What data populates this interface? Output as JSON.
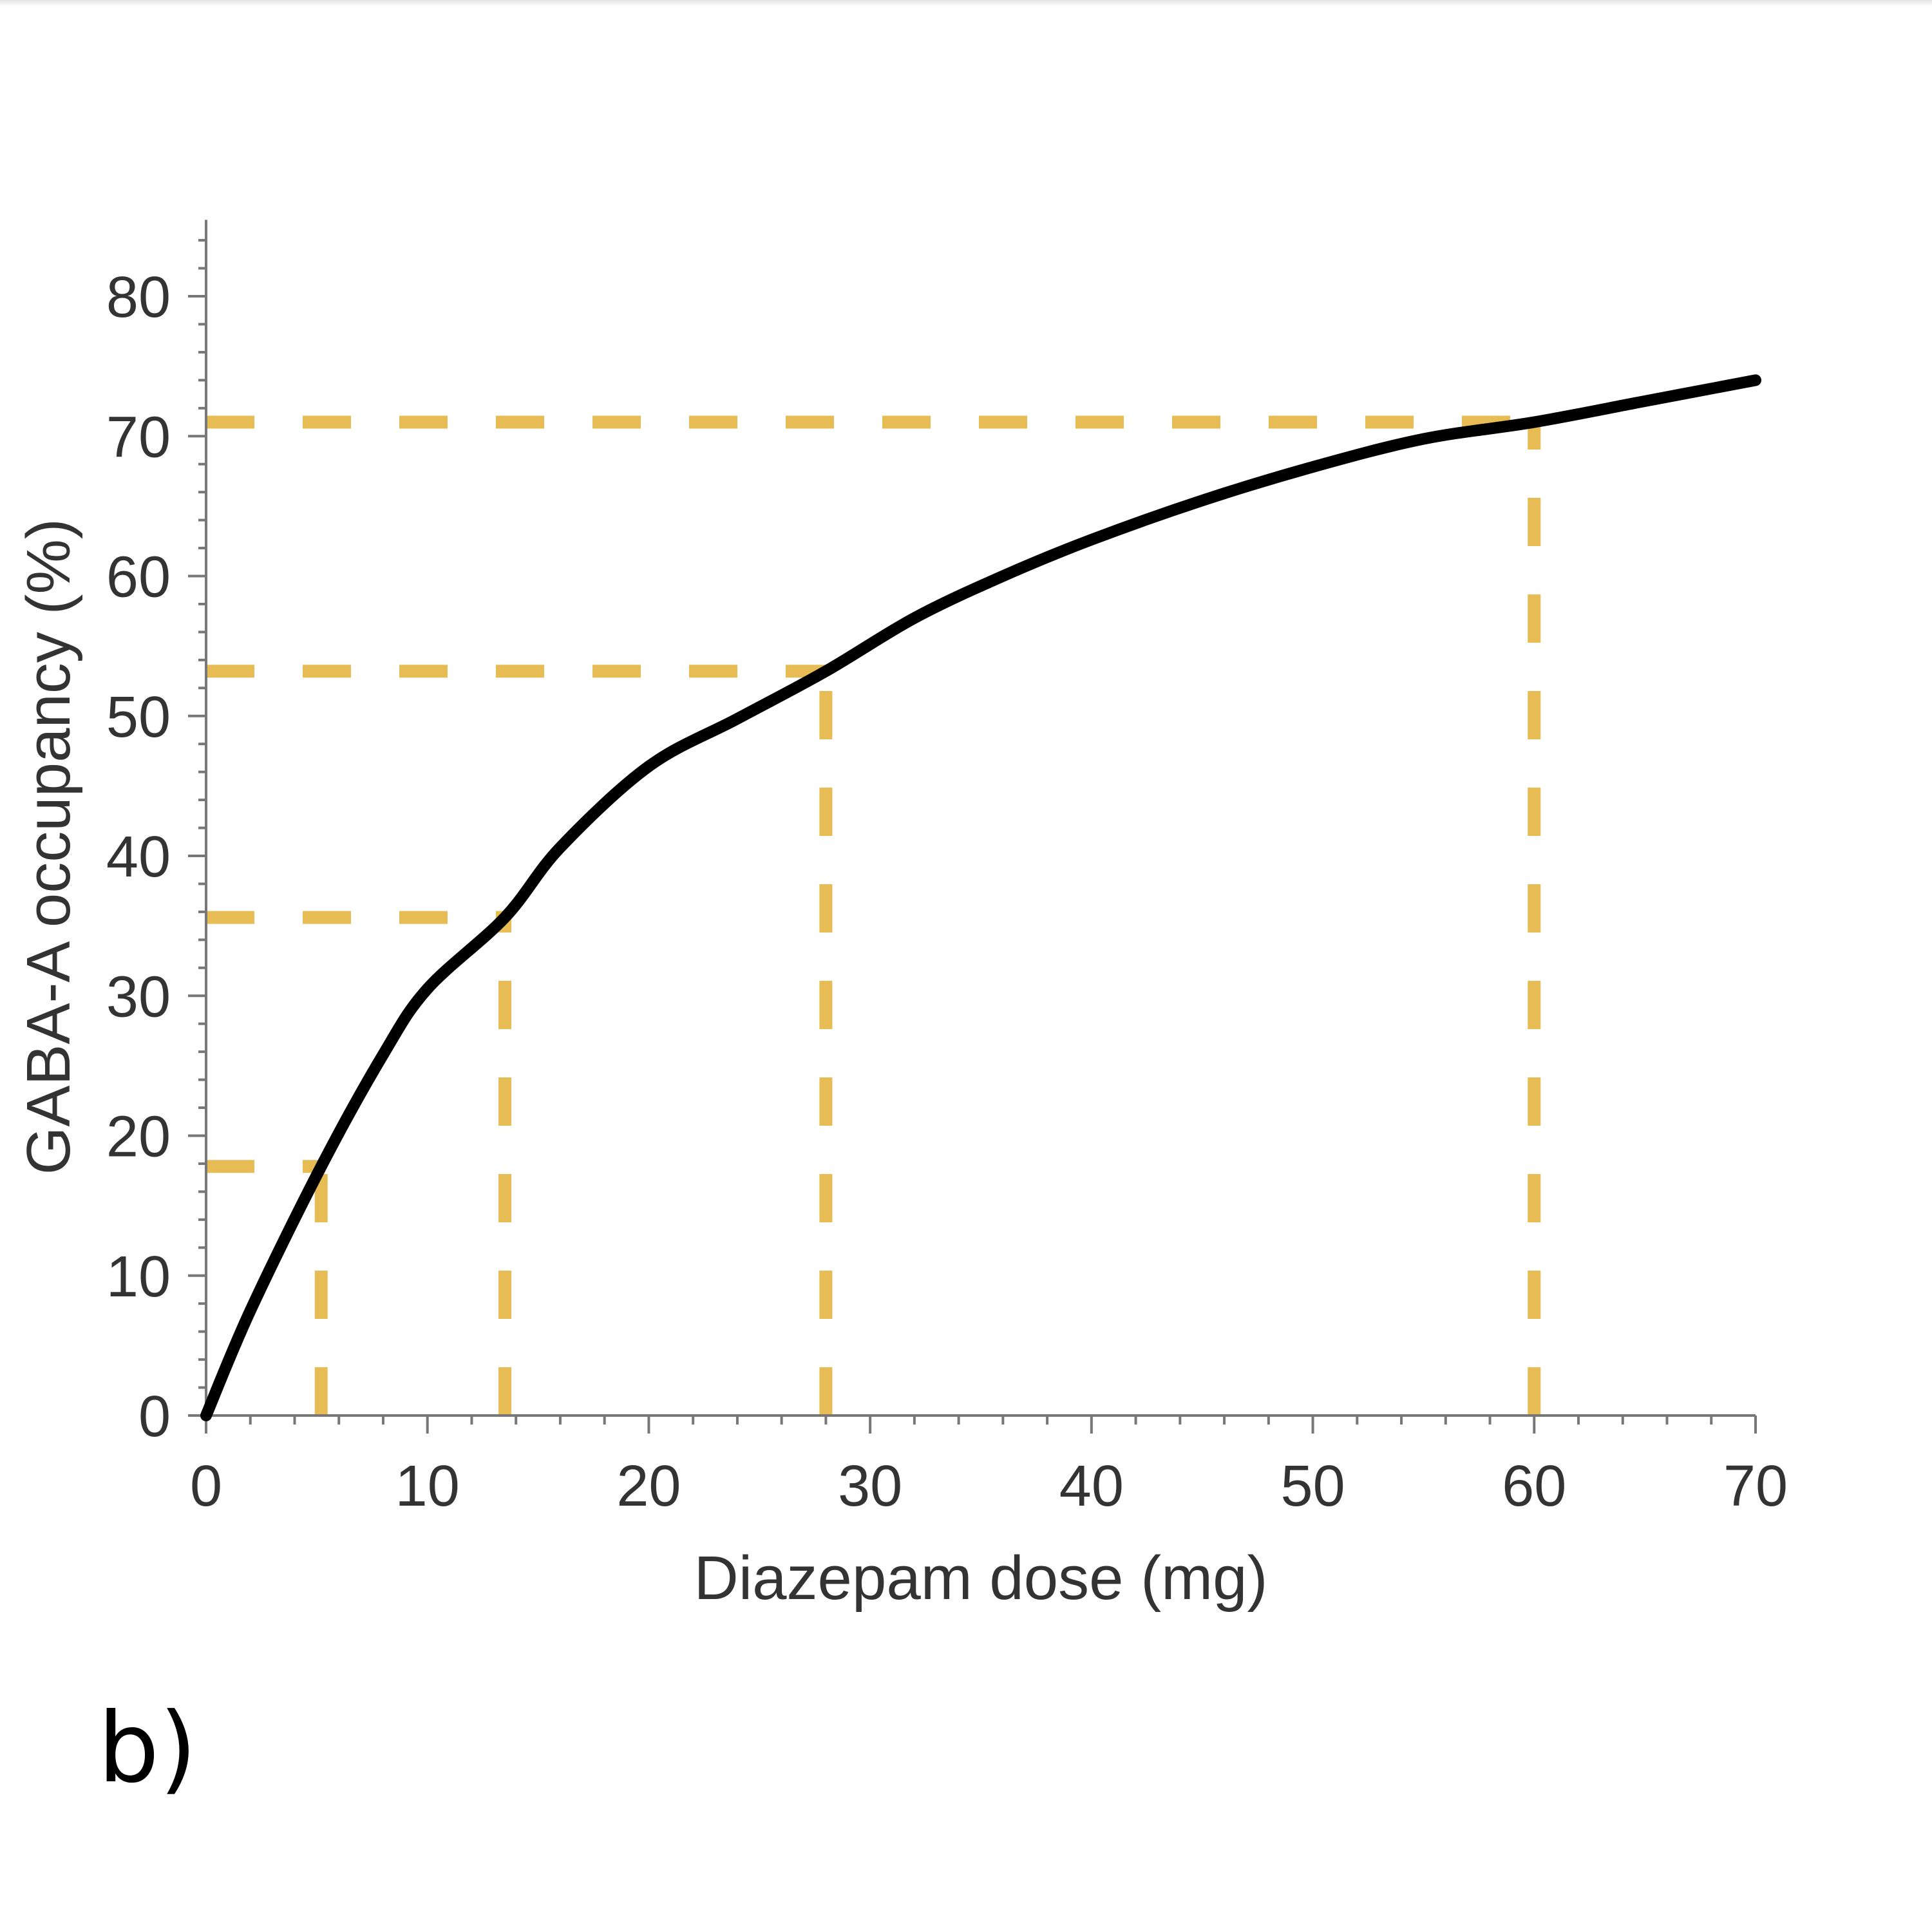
{
  "panel_label": "b)",
  "chart_data": {
    "type": "line",
    "title": "",
    "xlabel": "Diazepam dose (mg)",
    "ylabel": "GABA-A occupancy (%)",
    "xlim": [
      0,
      70
    ],
    "ylim": [
      0,
      85
    ],
    "x_ticks": [
      0,
      10,
      20,
      30,
      40,
      50,
      60,
      70
    ],
    "y_ticks": [
      0,
      10,
      20,
      30,
      40,
      50,
      60,
      70,
      80
    ],
    "x_tick_labels": [
      "0",
      "10",
      "20",
      "30",
      "40",
      "50",
      "60",
      "70"
    ],
    "y_tick_labels": [
      "0",
      "10",
      "20",
      "30",
      "40",
      "50",
      "60",
      "70",
      "80"
    ],
    "grid": false,
    "series": [
      {
        "name": "",
        "color": "#000000",
        "x": [
          0,
          2,
          5.2,
          8,
          10,
          13.5,
          16,
          20,
          24,
          28,
          32,
          36,
          40,
          45,
          50,
          55,
          60,
          65,
          70
        ],
        "y": [
          0,
          7.5,
          17.8,
          25.8,
          30.5,
          35.6,
          40.6,
          46.4,
          49.8,
          53.2,
          57.0,
          60.0,
          62.6,
          65.4,
          67.8,
          69.8,
          71.0,
          72.5,
          74.0
        ]
      }
    ],
    "reference_points": [
      {
        "x": 5.2,
        "y": 17.8
      },
      {
        "x": 13.5,
        "y": 35.6
      },
      {
        "x": 28,
        "y": 53.2
      },
      {
        "x": 60,
        "y": 71
      }
    ],
    "reference_line_color": "#E8BC55"
  }
}
